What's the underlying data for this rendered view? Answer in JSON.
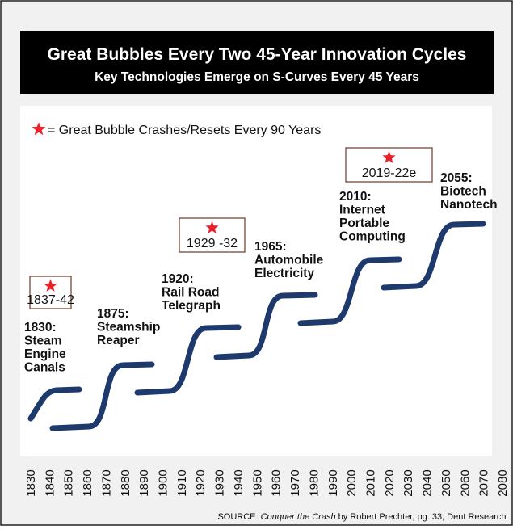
{
  "header": {
    "title": "Great Bubbles Every Two 45-Year Innovation Cycles",
    "subtitle": "Key Technologies Emerge on S-Curves Every 45 Years"
  },
  "legend": "= Great Bubble Crashes/Resets Every 90 Years",
  "waves": [
    {
      "lines": [
        "1830:",
        "Steam",
        "Engine",
        "Canals"
      ]
    },
    {
      "lines": [
        "1875:",
        "Steamship",
        "Reaper"
      ]
    },
    {
      "lines": [
        "1920:",
        "Rail Road",
        "Telegraph"
      ]
    },
    {
      "lines": [
        "1965:",
        "Automobile",
        "Electricity"
      ]
    },
    {
      "lines": [
        "2010:",
        "Internet",
        "Portable",
        "Computing"
      ]
    },
    {
      "lines": [
        "2055:",
        "Biotech",
        "Nanotech"
      ]
    }
  ],
  "crashes": [
    "1837-42",
    "1929 -32",
    "2019-22e"
  ],
  "years": [
    1830,
    1840,
    1850,
    1860,
    1870,
    1880,
    1890,
    1900,
    1910,
    1920,
    1930,
    1940,
    1950,
    1960,
    1970,
    1980,
    1990,
    2000,
    2010,
    2020,
    2030,
    2040,
    2050,
    2060,
    2070,
    2080
  ],
  "source": {
    "prefix": "SOURCE: ",
    "book": "Conquer the Crash",
    "suffix": " by Robert Prechter, pg. 33, Dent Research"
  }
}
